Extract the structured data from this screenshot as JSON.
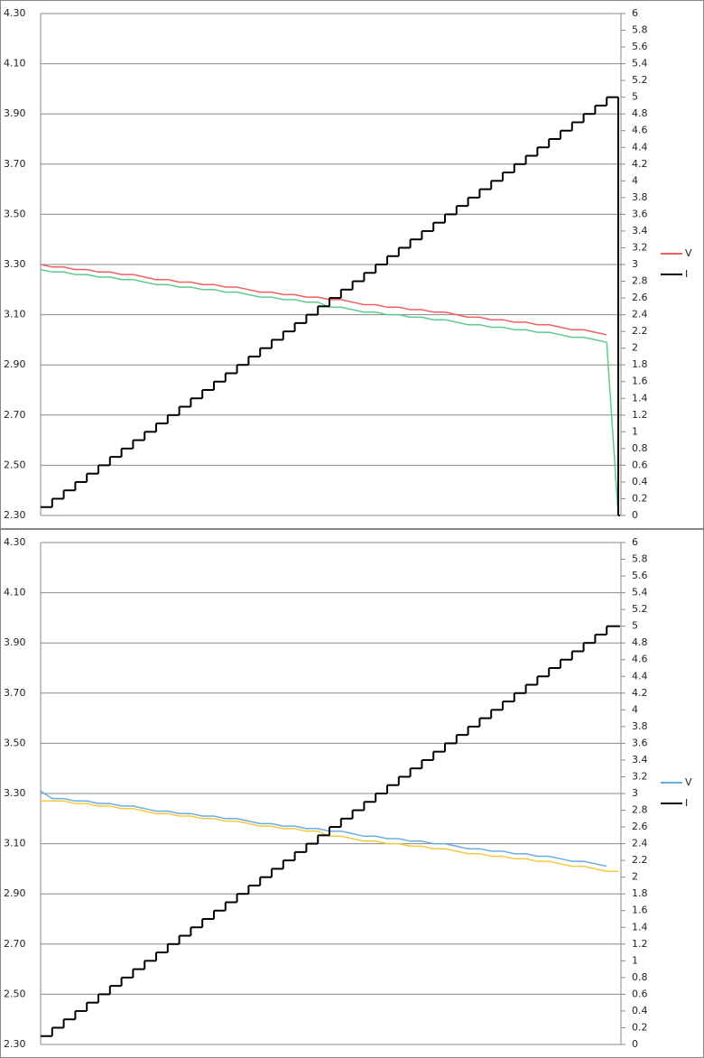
{
  "chart_data": [
    {
      "type": "line",
      "series": [
        {
          "name": "V",
          "color": "#f06060",
          "values": [
            3.3,
            3.29,
            3.29,
            3.28,
            3.28,
            3.27,
            3.27,
            3.26,
            3.26,
            3.25,
            3.24,
            3.24,
            3.23,
            3.23,
            3.22,
            3.22,
            3.21,
            3.21,
            3.2,
            3.19,
            3.19,
            3.18,
            3.18,
            3.17,
            3.17,
            3.16,
            3.16,
            3.15,
            3.14,
            3.14,
            3.13,
            3.13,
            3.12,
            3.12,
            3.11,
            3.11,
            3.1,
            3.09,
            3.09,
            3.08,
            3.08,
            3.07,
            3.07,
            3.06,
            3.06,
            3.05,
            3.04,
            3.04,
            3.03,
            3.02,
            null
          ]
        },
        {
          "color": "#5ccc8c",
          "values": [
            3.28,
            3.27,
            3.27,
            3.26,
            3.26,
            3.25,
            3.25,
            3.24,
            3.24,
            3.23,
            3.22,
            3.22,
            3.21,
            3.21,
            3.2,
            3.2,
            3.19,
            3.19,
            3.18,
            3.17,
            3.17,
            3.16,
            3.16,
            3.15,
            3.15,
            3.13,
            3.13,
            3.12,
            3.11,
            3.11,
            3.1,
            3.1,
            3.09,
            3.09,
            3.08,
            3.08,
            3.07,
            3.06,
            3.06,
            3.05,
            3.05,
            3.04,
            3.04,
            3.03,
            3.03,
            3.02,
            3.01,
            3.01,
            3.0,
            2.99,
            2.3
          ]
        },
        {
          "name": "I",
          "color": "#000000",
          "axis": "y2",
          "values": [
            0.1,
            0.2,
            0.3,
            0.4,
            0.5,
            0.6,
            0.7,
            0.8,
            0.9,
            1.0,
            1.1,
            1.2,
            1.3,
            1.4,
            1.5,
            1.6,
            1.7,
            1.8,
            1.9,
            2.0,
            2.1,
            2.2,
            2.3,
            2.4,
            2.5,
            2.6,
            2.7,
            2.8,
            2.9,
            3.0,
            3.1,
            3.2,
            3.3,
            3.4,
            3.5,
            3.6,
            3.7,
            3.8,
            3.9,
            4.0,
            4.1,
            4.2,
            4.3,
            4.4,
            4.5,
            4.6,
            4.7,
            4.8,
            4.9,
            5.0,
            0
          ]
        }
      ],
      "ylim": [
        2.3,
        4.3
      ],
      "yticks": [
        {
          "value": 2.3,
          "label": "2.30"
        },
        {
          "value": 2.5,
          "label": "2.50"
        },
        {
          "value": 2.7,
          "label": "2.70"
        },
        {
          "value": 2.9,
          "label": "2.90"
        },
        {
          "value": 3.1,
          "label": "3.10"
        },
        {
          "value": 3.3,
          "label": "3.30"
        },
        {
          "value": 3.5,
          "label": "3.50"
        },
        {
          "value": 3.7,
          "label": "3.70"
        },
        {
          "value": 3.9,
          "label": "3.90"
        },
        {
          "value": 4.1,
          "label": "4.10"
        },
        {
          "value": 4.3,
          "label": "4.30"
        }
      ],
      "y2lim": [
        0,
        6
      ],
      "y2ticks": [
        0,
        0.2,
        0.4,
        0.6,
        0.8,
        1,
        1.2,
        1.4,
        1.6,
        1.8,
        2,
        2.2,
        2.4,
        2.6,
        2.8,
        3,
        3.2,
        3.4,
        3.6,
        3.8,
        4,
        4.2,
        4.4,
        4.6,
        4.8,
        5,
        5.2,
        5.4,
        5.6,
        5.8,
        6
      ],
      "grid": true,
      "legend": "right"
    },
    {
      "type": "line",
      "series": [
        {
          "name": "V",
          "color": "#6aaee0",
          "values": [
            3.31,
            3.28,
            3.28,
            3.27,
            3.27,
            3.26,
            3.26,
            3.25,
            3.25,
            3.24,
            3.23,
            3.23,
            3.22,
            3.22,
            3.21,
            3.21,
            3.2,
            3.2,
            3.19,
            3.18,
            3.18,
            3.17,
            3.17,
            3.16,
            3.16,
            3.15,
            3.15,
            3.14,
            3.13,
            3.13,
            3.12,
            3.12,
            3.11,
            3.11,
            3.1,
            3.1,
            3.09,
            3.08,
            3.08,
            3.07,
            3.07,
            3.06,
            3.06,
            3.05,
            3.05,
            3.04,
            3.03,
            3.03,
            3.02,
            3.01,
            null
          ]
        },
        {
          "color": "#f5c842",
          "values": [
            3.27,
            3.27,
            3.27,
            3.26,
            3.26,
            3.25,
            3.25,
            3.24,
            3.24,
            3.23,
            3.22,
            3.22,
            3.21,
            3.21,
            3.2,
            3.2,
            3.19,
            3.19,
            3.18,
            3.17,
            3.17,
            3.16,
            3.16,
            3.15,
            3.15,
            3.13,
            3.13,
            3.12,
            3.11,
            3.11,
            3.1,
            3.1,
            3.09,
            3.09,
            3.08,
            3.08,
            3.07,
            3.06,
            3.06,
            3.05,
            3.05,
            3.04,
            3.04,
            3.03,
            3.03,
            3.02,
            3.01,
            3.01,
            3.0,
            2.99,
            2.99
          ]
        },
        {
          "name": "I",
          "color": "#000000",
          "axis": "y2",
          "values": [
            0.1,
            0.2,
            0.3,
            0.4,
            0.5,
            0.6,
            0.7,
            0.8,
            0.9,
            1.0,
            1.1,
            1.2,
            1.3,
            1.4,
            1.5,
            1.6,
            1.7,
            1.8,
            1.9,
            2.0,
            2.1,
            2.2,
            2.3,
            2.4,
            2.5,
            2.6,
            2.7,
            2.8,
            2.9,
            3.0,
            3.1,
            3.2,
            3.3,
            3.4,
            3.5,
            3.6,
            3.7,
            3.8,
            3.9,
            4.0,
            4.1,
            4.2,
            4.3,
            4.4,
            4.5,
            4.6,
            4.7,
            4.8,
            4.9,
            5.0,
            5.0
          ]
        }
      ],
      "ylim": [
        2.3,
        4.3
      ],
      "yticks": [
        {
          "value": 2.3,
          "label": "2.30"
        },
        {
          "value": 2.5,
          "label": "2.50"
        },
        {
          "value": 2.7,
          "label": "2.70"
        },
        {
          "value": 2.9,
          "label": "2.90"
        },
        {
          "value": 3.1,
          "label": "3.10"
        },
        {
          "value": 3.3,
          "label": "3.30"
        },
        {
          "value": 3.5,
          "label": "3.50"
        },
        {
          "value": 3.7,
          "label": "3.70"
        },
        {
          "value": 3.9,
          "label": "3.90"
        },
        {
          "value": 4.1,
          "label": "4.10"
        },
        {
          "value": 4.3,
          "label": "4.30"
        }
      ],
      "y2lim": [
        0,
        6
      ],
      "y2ticks": [
        0,
        0.2,
        0.4,
        0.6,
        0.8,
        1,
        1.2,
        1.4,
        1.6,
        1.8,
        2,
        2.2,
        2.4,
        2.6,
        2.8,
        3,
        3.2,
        3.4,
        3.6,
        3.8,
        4,
        4.2,
        4.4,
        4.6,
        4.8,
        5,
        5.2,
        5.4,
        5.6,
        5.8,
        6
      ],
      "grid": true,
      "legend": "right"
    }
  ]
}
